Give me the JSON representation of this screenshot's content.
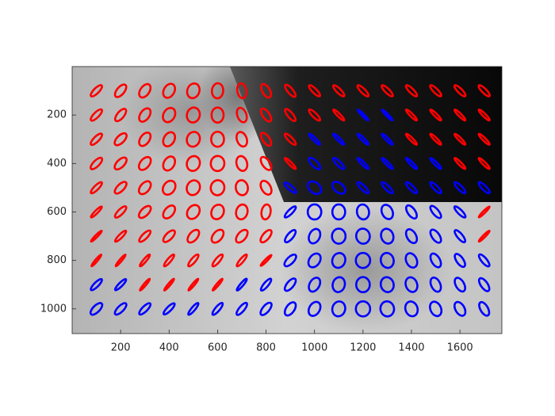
{
  "chart_data": {
    "type": "ellipse",
    "xlim": [
      0,
      1773
    ],
    "ylim": [
      0,
      1102
    ],
    "y_direction": "reverse",
    "xticks": [
      200,
      400,
      600,
      800,
      1000,
      1200,
      1400,
      1600
    ],
    "yticks": [
      200,
      400,
      600,
      800,
      1000
    ],
    "series": [
      {
        "color": "#ff0000",
        "x": [
          100,
          200,
          300,
          400,
          500,
          600,
          700,
          800,
          900,
          1000,
          1100,
          1200,
          1300,
          1400,
          1500,
          1600,
          1700,
          100,
          200,
          300,
          400,
          500,
          600,
          700,
          800,
          900,
          1000,
          1100,
          1400,
          1500,
          1600,
          1700,
          100,
          200,
          300,
          400,
          500,
          600,
          700,
          800,
          900,
          1400,
          1500,
          1600,
          1700,
          100,
          200,
          300,
          400,
          500,
          600,
          700,
          800,
          900,
          1600,
          1700,
          100,
          200,
          300,
          400,
          500,
          600,
          700,
          800,
          100,
          200,
          300,
          400,
          500,
          600,
          700,
          800,
          1700,
          100,
          200,
          300,
          400,
          500,
          600,
          700,
          800,
          1700,
          100,
          200,
          300,
          400,
          500,
          600,
          700,
          800,
          300,
          400,
          500,
          600
        ],
        "y": [
          100,
          100,
          100,
          100,
          100,
          100,
          100,
          100,
          100,
          100,
          100,
          100,
          100,
          100,
          100,
          100,
          100,
          200,
          200,
          200,
          200,
          200,
          200,
          200,
          200,
          200,
          200,
          200,
          200,
          200,
          200,
          200,
          300,
          300,
          300,
          300,
          300,
          300,
          300,
          300,
          300,
          300,
          300,
          300,
          300,
          400,
          400,
          400,
          400,
          400,
          400,
          400,
          400,
          400,
          400,
          400,
          500,
          500,
          500,
          500,
          500,
          500,
          500,
          500,
          600,
          600,
          600,
          600,
          600,
          600,
          600,
          600,
          600,
          700,
          700,
          700,
          700,
          700,
          700,
          700,
          700,
          700,
          800,
          800,
          800,
          800,
          800,
          800,
          800,
          800,
          900,
          900,
          900,
          900
        ],
        "angle": [
          45,
          50,
          55,
          60,
          70,
          85,
          100,
          120,
          130,
          135,
          135,
          135,
          135,
          135,
          135,
          135,
          135,
          45,
          50,
          55,
          60,
          75,
          90,
          110,
          125,
          130,
          135,
          135,
          135,
          135,
          135,
          135,
          45,
          45,
          55,
          60,
          70,
          90,
          110,
          125,
          135,
          135,
          135,
          135,
          135,
          45,
          45,
          50,
          60,
          70,
          85,
          105,
          125,
          135,
          135,
          135,
          45,
          45,
          50,
          55,
          65,
          80,
          100,
          120,
          45,
          45,
          45,
          50,
          55,
          65,
          75,
          80,
          45,
          45,
          45,
          45,
          45,
          50,
          50,
          50,
          50,
          45,
          50,
          50,
          50,
          50,
          50,
          50,
          50,
          45,
          50,
          50,
          50,
          50
        ],
        "ratio": [
          0.35,
          0.5,
          0.6,
          0.7,
          0.8,
          0.75,
          0.6,
          0.5,
          0.35,
          0.3,
          0.3,
          0.3,
          0.3,
          0.3,
          0.3,
          0.3,
          0.3,
          0.35,
          0.45,
          0.6,
          0.75,
          0.85,
          0.8,
          0.6,
          0.45,
          0.35,
          0.3,
          0.2,
          0.2,
          0.2,
          0.2,
          0.2,
          0.35,
          0.5,
          0.6,
          0.7,
          0.85,
          0.85,
          0.65,
          0.45,
          0.3,
          0.2,
          0.2,
          0.2,
          0.2,
          0.4,
          0.5,
          0.6,
          0.7,
          0.85,
          0.9,
          0.7,
          0.5,
          0.2,
          0.2,
          0.2,
          0.3,
          0.45,
          0.6,
          0.75,
          0.85,
          0.9,
          0.8,
          0.6,
          0.2,
          0.35,
          0.5,
          0.6,
          0.75,
          0.8,
          0.75,
          0.6,
          0.15,
          0.15,
          0.25,
          0.35,
          0.45,
          0.55,
          0.6,
          0.55,
          0.45,
          0.15,
          0.15,
          0.15,
          0.2,
          0.25,
          0.3,
          0.3,
          0.25,
          0.15,
          0.15,
          0.15,
          0.15,
          0.15
        ]
      },
      {
        "color": "#0000ff",
        "x": [
          1200,
          1300,
          1000,
          1100,
          1200,
          1300,
          1000,
          1100,
          1200,
          1300,
          1400,
          1500,
          900,
          1000,
          1100,
          1200,
          1300,
          1400,
          1500,
          1600,
          1700,
          900,
          1000,
          1100,
          1200,
          1300,
          1400,
          1500,
          1600,
          900,
          1000,
          1100,
          1200,
          1300,
          1400,
          1500,
          1600,
          900,
          1000,
          1100,
          1200,
          1300,
          1400,
          1500,
          1600,
          1700,
          100,
          200,
          700,
          800,
          900,
          1000,
          1100,
          1200,
          1300,
          1400,
          1500,
          1600,
          1700,
          100,
          200,
          300,
          400,
          500,
          600,
          700,
          800,
          900,
          1000,
          1100,
          1200,
          1300,
          1400,
          1500,
          1600,
          1700
        ],
        "y": [
          200,
          200,
          300,
          300,
          300,
          300,
          400,
          400,
          400,
          400,
          400,
          400,
          500,
          500,
          500,
          500,
          500,
          500,
          500,
          500,
          500,
          600,
          600,
          600,
          600,
          600,
          600,
          600,
          600,
          700,
          700,
          700,
          700,
          700,
          700,
          700,
          700,
          800,
          800,
          800,
          800,
          800,
          800,
          800,
          800,
          800,
          900,
          900,
          900,
          900,
          900,
          900,
          900,
          900,
          900,
          900,
          900,
          900,
          900,
          1000,
          1000,
          1000,
          1000,
          1000,
          1000,
          1000,
          1000,
          1000,
          1000,
          1000,
          1000,
          1000,
          1000,
          1000,
          1000,
          1000
        ],
        "angle": [
          135,
          135,
          135,
          135,
          135,
          135,
          135,
          135,
          135,
          135,
          135,
          135,
          140,
          140,
          140,
          135,
          135,
          135,
          135,
          135,
          135,
          45,
          90,
          90,
          100,
          115,
          125,
          130,
          135,
          50,
          65,
          90,
          100,
          110,
          120,
          125,
          130,
          45,
          55,
          70,
          90,
          105,
          115,
          120,
          125,
          130,
          45,
          45,
          50,
          50,
          50,
          60,
          75,
          90,
          105,
          110,
          115,
          120,
          125,
          45,
          45,
          45,
          45,
          50,
          50,
          50,
          50,
          55,
          60,
          75,
          90,
          100,
          110,
          115,
          120,
          120
        ],
        "ratio": [
          0.15,
          0.15,
          0.2,
          0.2,
          0.2,
          0.2,
          0.4,
          0.3,
          0.2,
          0.2,
          0.2,
          0.2,
          0.3,
          0.7,
          0.6,
          0.3,
          0.3,
          0.3,
          0.3,
          0.3,
          0.3,
          0.3,
          0.9,
          0.85,
          0.8,
          0.7,
          0.5,
          0.4,
          0.3,
          0.4,
          0.7,
          0.9,
          0.9,
          0.8,
          0.6,
          0.5,
          0.35,
          0.45,
          0.7,
          0.85,
          0.95,
          0.85,
          0.7,
          0.55,
          0.45,
          0.35,
          0.3,
          0.25,
          0.2,
          0.3,
          0.45,
          0.65,
          0.8,
          0.9,
          0.85,
          0.75,
          0.6,
          0.55,
          0.45,
          0.45,
          0.4,
          0.35,
          0.3,
          0.25,
          0.3,
          0.35,
          0.45,
          0.55,
          0.7,
          0.85,
          0.95,
          0.9,
          0.8,
          0.7,
          0.6,
          0.5
        ]
      }
    ]
  }
}
